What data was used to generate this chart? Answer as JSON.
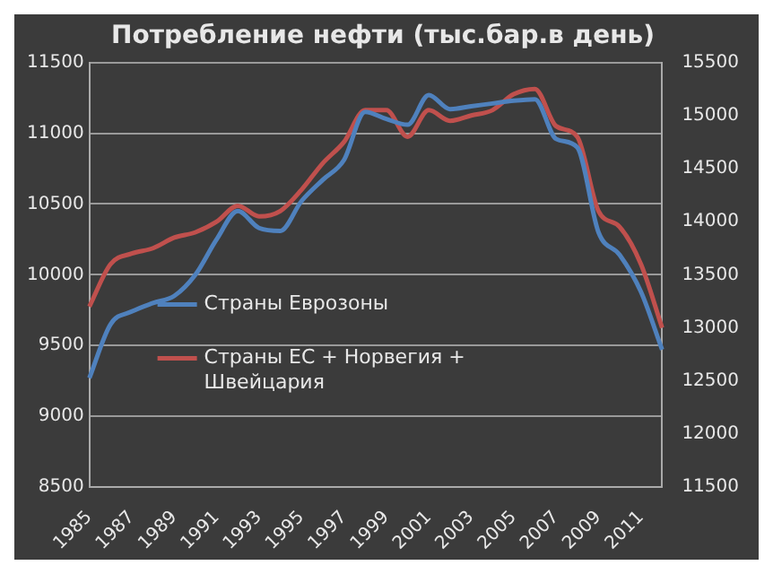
{
  "chart_data": {
    "type": "line",
    "title": "Потребление нефти (тыс.бар.в день)",
    "categories": [
      "1985",
      null,
      "1987",
      null,
      "1989",
      null,
      "1991",
      null,
      "1993",
      null,
      "1995",
      null,
      "1997",
      null,
      "1999",
      null,
      "2001",
      null,
      "2003",
      null,
      "2005",
      null,
      "2007",
      null,
      "2009",
      null,
      "2011",
      null
    ],
    "series": [
      {
        "name": "Страны Еврозоны",
        "color": "#4f81bd",
        "values": [
          9270,
          9650,
          9740,
          9800,
          9850,
          10000,
          10250,
          10450,
          10330,
          10310,
          10520,
          10670,
          10810,
          11150,
          11100,
          11060,
          11270,
          11170,
          11190,
          11210,
          11230,
          11240,
          10960,
          10900,
          10300,
          10140,
          9880,
          9470
        ]
      },
      {
        "name": "Страны ЕС + Норвегия + Швейцария",
        "color": "#c0504d",
        "axis": "y2",
        "values": [
          13200,
          13600,
          13700,
          13750,
          13850,
          13900,
          14000,
          14150,
          14050,
          14100,
          14300,
          14550,
          14750,
          15050,
          15050,
          14800,
          15050,
          14950,
          15000,
          15050,
          15200,
          15250,
          14900,
          14800,
          14100,
          13950,
          13600,
          13000
        ]
      }
    ],
    "ylim": [
      8500,
      11500
    ],
    "yticks": [
      8500,
      9000,
      9500,
      10000,
      10500,
      11000,
      11500
    ],
    "y2lim": [
      11500,
      15500
    ],
    "y2ticks": [
      11500,
      12000,
      12500,
      13000,
      13500,
      14000,
      14500,
      15000,
      15500
    ],
    "grid": "y",
    "legend": "left",
    "marker": "none",
    "line_style": "solid"
  }
}
